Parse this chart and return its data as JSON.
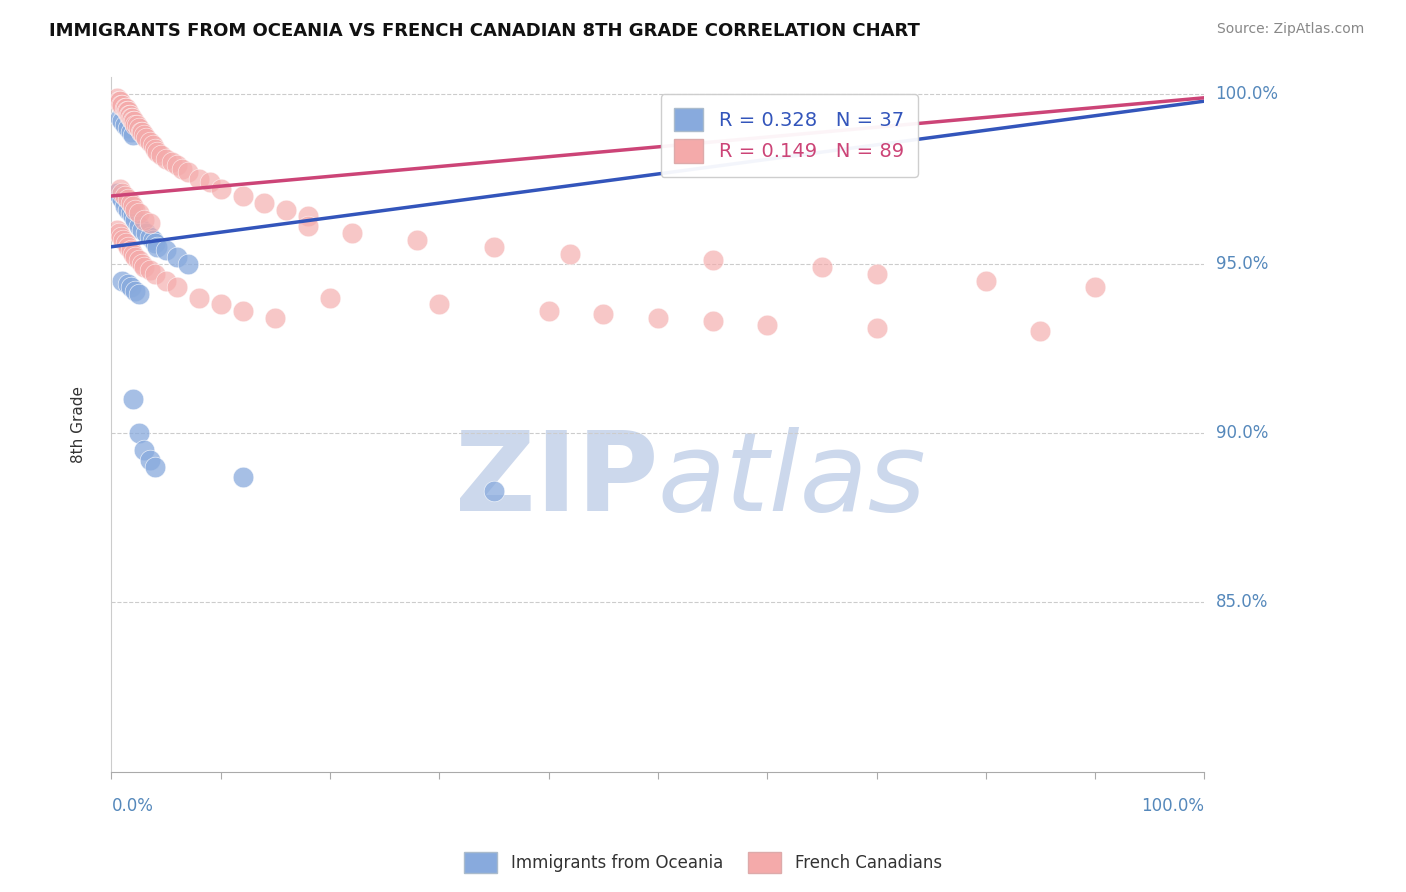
{
  "title": "IMMIGRANTS FROM OCEANIA VS FRENCH CANADIAN 8TH GRADE CORRELATION CHART",
  "source_text": "Source: ZipAtlas.com",
  "ylabel": "8th Grade",
  "ylabel_right_ticks": [
    "85.0%",
    "90.0%",
    "95.0%",
    "100.0%"
  ],
  "ylabel_right_values": [
    0.85,
    0.9,
    0.95,
    1.0
  ],
  "blue_color": "#88aadd",
  "pink_color": "#f4aaaa",
  "blue_line_color": "#3355bb",
  "pink_line_color": "#cc4477",
  "watermark_zip_color": "#ccd8ec",
  "watermark_atlas_color": "#ccd8ec",
  "blue_scatter_x": [
    0.005,
    0.008,
    0.01,
    0.012,
    0.015,
    0.018,
    0.02,
    0.022,
    0.025,
    0.028,
    0.032,
    0.035,
    0.038,
    0.04,
    0.042,
    0.05,
    0.06,
    0.07,
    0.008,
    0.01,
    0.012,
    0.015,
    0.018,
    0.02,
    0.01,
    0.015,
    0.018,
    0.022,
    0.025,
    0.02,
    0.025,
    0.03,
    0.035,
    0.04,
    0.12,
    0.35
  ],
  "blue_scatter_y": [
    0.971,
    0.97,
    0.969,
    0.967,
    0.966,
    0.965,
    0.964,
    0.963,
    0.961,
    0.96,
    0.959,
    0.958,
    0.957,
    0.956,
    0.955,
    0.954,
    0.952,
    0.95,
    0.993,
    0.992,
    0.991,
    0.99,
    0.989,
    0.988,
    0.945,
    0.944,
    0.943,
    0.942,
    0.941,
    0.91,
    0.9,
    0.895,
    0.892,
    0.89,
    0.887,
    0.883
  ],
  "pink_scatter_x": [
    0.005,
    0.007,
    0.008,
    0.009,
    0.01,
    0.012,
    0.013,
    0.014,
    0.015,
    0.016,
    0.017,
    0.018,
    0.019,
    0.02,
    0.021,
    0.022,
    0.023,
    0.025,
    0.027,
    0.028,
    0.03,
    0.032,
    0.035,
    0.038,
    0.04,
    0.042,
    0.045,
    0.05,
    0.055,
    0.06,
    0.065,
    0.07,
    0.08,
    0.09,
    0.1,
    0.12,
    0.14,
    0.16,
    0.18,
    0.008,
    0.01,
    0.012,
    0.015,
    0.018,
    0.02,
    0.022,
    0.025,
    0.03,
    0.035,
    0.005,
    0.007,
    0.009,
    0.011,
    0.013,
    0.015,
    0.018,
    0.02,
    0.022,
    0.025,
    0.028,
    0.03,
    0.035,
    0.04,
    0.05,
    0.06,
    0.08,
    0.1,
    0.12,
    0.15,
    0.18,
    0.22,
    0.28,
    0.35,
    0.42,
    0.55,
    0.65,
    0.7,
    0.8,
    0.9,
    0.2,
    0.3,
    0.4,
    0.45,
    0.5,
    0.55,
    0.6,
    0.7,
    0.85
  ],
  "pink_scatter_y": [
    0.999,
    0.998,
    0.998,
    0.997,
    0.997,
    0.996,
    0.996,
    0.995,
    0.995,
    0.994,
    0.994,
    0.993,
    0.993,
    0.992,
    0.992,
    0.991,
    0.991,
    0.99,
    0.989,
    0.989,
    0.988,
    0.987,
    0.986,
    0.985,
    0.984,
    0.983,
    0.982,
    0.981,
    0.98,
    0.979,
    0.978,
    0.977,
    0.975,
    0.974,
    0.972,
    0.97,
    0.968,
    0.966,
    0.964,
    0.972,
    0.971,
    0.97,
    0.969,
    0.968,
    0.967,
    0.966,
    0.965,
    0.963,
    0.962,
    0.96,
    0.959,
    0.958,
    0.957,
    0.956,
    0.955,
    0.954,
    0.953,
    0.952,
    0.951,
    0.95,
    0.949,
    0.948,
    0.947,
    0.945,
    0.943,
    0.94,
    0.938,
    0.936,
    0.934,
    0.961,
    0.959,
    0.957,
    0.955,
    0.953,
    0.951,
    0.949,
    0.947,
    0.945,
    0.943,
    0.94,
    0.938,
    0.936,
    0.935,
    0.934,
    0.933,
    0.932,
    0.931,
    0.93
  ],
  "xlim": [
    0.0,
    1.0
  ],
  "ylim": [
    0.8,
    1.005
  ],
  "blue_line_y0": 0.955,
  "blue_line_y1": 0.998,
  "pink_line_y0": 0.97,
  "pink_line_y1": 0.999
}
